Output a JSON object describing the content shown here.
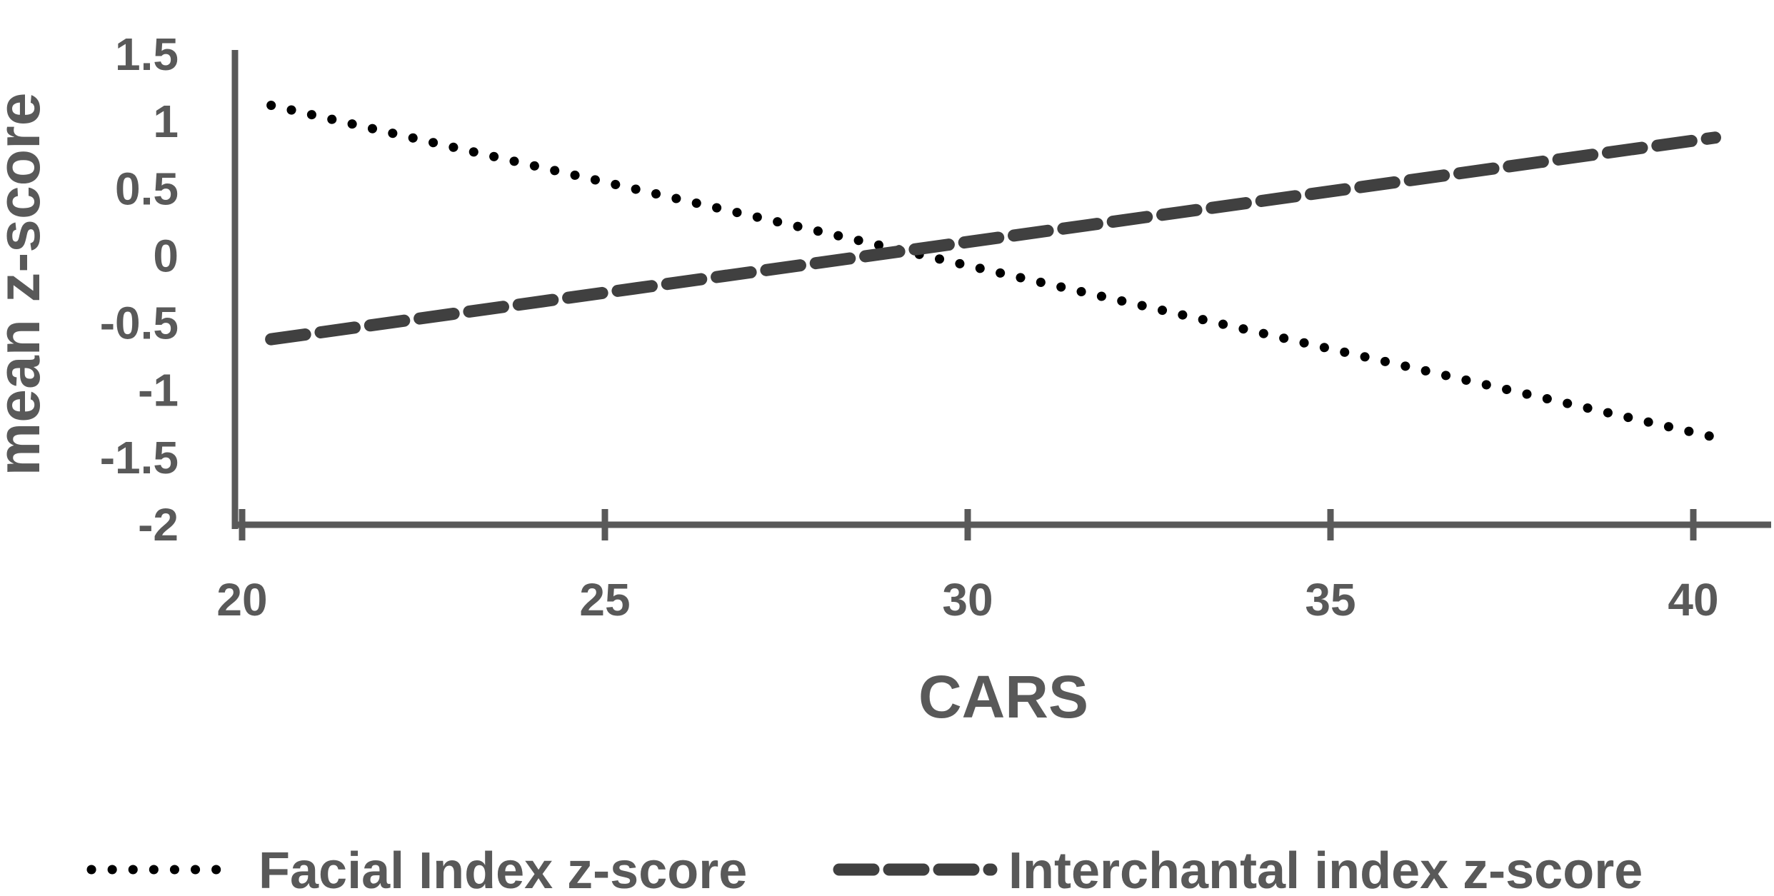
{
  "chart_data": {
    "type": "line",
    "title": "",
    "xlabel": "CARS",
    "ylabel": "mean z-score",
    "xlim": [
      20,
      40
    ],
    "ylim": [
      -2,
      1.5
    ],
    "x_ticks": [
      20,
      25,
      30,
      35,
      40
    ],
    "x_tick_labels": [
      "20",
      "25",
      "30",
      "35",
      "40"
    ],
    "y_ticks": [
      1.5,
      1,
      0.5,
      0,
      -0.5,
      -1,
      -1.5,
      -2
    ],
    "y_tick_labels": [
      "1.5",
      "1",
      "0.5",
      "0",
      "-0.5",
      "-1",
      "-1.5",
      "-2"
    ],
    "grid": false,
    "legend_placement": "bottom",
    "series": [
      {
        "name": "Facial Index z-score",
        "style": "dotted",
        "color": "#000000",
        "x": [
          20.4,
          40.3
        ],
        "y": [
          1.12,
          -1.35
        ]
      },
      {
        "name": "Interchantal index z-score",
        "style": "dashed",
        "color": "#404040",
        "x": [
          20.4,
          40.3
        ],
        "y": [
          -0.62,
          0.88
        ]
      }
    ],
    "axis_color": "#595959"
  }
}
